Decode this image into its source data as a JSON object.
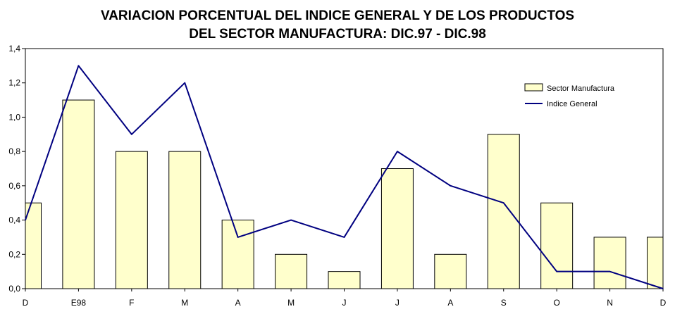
{
  "chart_data": {
    "type": "bar",
    "title_lines": [
      "VARIACION PORCENTUAL DEL INDICE GENERAL Y DE LOS PRODUCTOS",
      "DEL SECTOR MANUFACTURA: DIC.97 - DIC.98"
    ],
    "categories": [
      "D",
      "E98",
      "F",
      "M",
      "A",
      "M",
      "J",
      "J",
      "A",
      "S",
      "O",
      "N",
      "D"
    ],
    "series": [
      {
        "name": "Sector Manufactura",
        "type": "bar",
        "values": [
          0.5,
          1.1,
          0.8,
          0.8,
          0.4,
          0.2,
          0.1,
          0.7,
          0.2,
          0.9,
          0.5,
          0.3,
          0.3
        ],
        "color": "#ffffcc"
      },
      {
        "name": "Indice General",
        "type": "line",
        "values": [
          0.4,
          1.3,
          0.9,
          1.2,
          0.3,
          0.4,
          0.3,
          0.8,
          0.6,
          0.5,
          0.1,
          0.1,
          0.0
        ],
        "color": "#000080"
      }
    ],
    "y_ticks": [
      "0,0",
      "0,2",
      "0,4",
      "0,6",
      "0,8",
      "1,0",
      "1,2",
      "1,4"
    ],
    "ylim": [
      0,
      1.4
    ],
    "grid": false,
    "legend_position": "top-right"
  }
}
